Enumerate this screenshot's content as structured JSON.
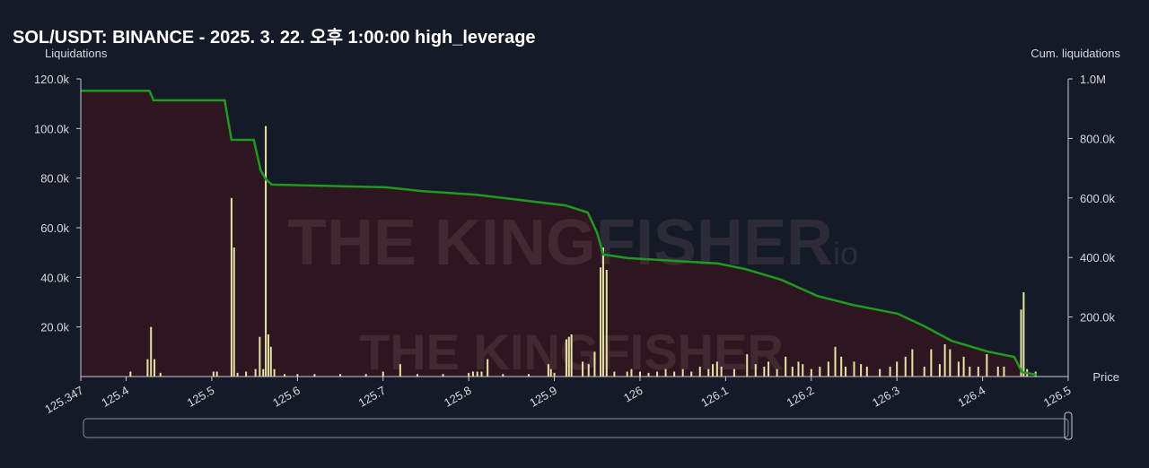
{
  "chart_data": {
    "type": "bar_line",
    "title": "SOL/USDT: BINANCE - 2025. 3. 22. 오후 1:00:00 high_leverage",
    "ylabel": "Liquidations",
    "y2label": "Cum. liquidations",
    "xlabel": "Price",
    "watermark": "THE KINGFISHER",
    "watermark_suffix": ".io",
    "xlim": [
      125.347,
      126.5
    ],
    "xticks": [
      125.347,
      125.4,
      125.5,
      125.6,
      125.7,
      125.8,
      125.9,
      126,
      126.1,
      126.2,
      126.3,
      126.4,
      126.5
    ],
    "ylim": [
      0,
      120000
    ],
    "yticks": [
      {
        "value": 20000,
        "label": "20.0k"
      },
      {
        "value": 40000,
        "label": "40.0k"
      },
      {
        "value": 60000,
        "label": "60.0k"
      },
      {
        "value": 80000,
        "label": "80.0k"
      },
      {
        "value": 100000,
        "label": "100.0k"
      },
      {
        "value": 120000,
        "label": "120.0k"
      }
    ],
    "y2lim": [
      0,
      1000000
    ],
    "y2ticks": [
      {
        "value": 200000,
        "label": "200.0k"
      },
      {
        "value": 400000,
        "label": "400.0k"
      },
      {
        "value": 600000,
        "label": "600.0k"
      },
      {
        "value": 800000,
        "label": "800.0k"
      },
      {
        "value": 1000000,
        "label": "1.0M"
      }
    ],
    "series": [
      {
        "type": "bar",
        "color": "#e6e4a4",
        "x": [
          125.405,
          125.425,
          125.429,
          125.433,
          125.44,
          125.502,
          125.506,
          125.523,
          125.526,
          125.53,
          125.54,
          125.551,
          125.556,
          125.56,
          125.563,
          125.566,
          125.569,
          125.573,
          125.585,
          125.6,
          125.62,
          125.65,
          125.68,
          125.7,
          125.72,
          125.74,
          125.77,
          125.8,
          125.805,
          125.81,
          125.815,
          125.822,
          125.84,
          125.87,
          125.893,
          125.896,
          125.9,
          125.914,
          125.917,
          125.92,
          125.933,
          125.94,
          125.947,
          125.954,
          125.957,
          125.961,
          125.97,
          125.985,
          125.99,
          126,
          126.01,
          126.02,
          126.03,
          126.04,
          126.05,
          126.06,
          126.07,
          126.08,
          126.085,
          126.09,
          126.095,
          126.11,
          126.125,
          126.135,
          126.145,
          126.15,
          126.16,
          126.17,
          126.178,
          126.185,
          126.19,
          126.2,
          126.21,
          126.22,
          126.228,
          126.235,
          126.24,
          126.25,
          126.258,
          126.265,
          126.28,
          126.292,
          126.3,
          126.31,
          126.318,
          126.332,
          126.34,
          126.35,
          126.356,
          126.362,
          126.372,
          126.378,
          126.385,
          126.395,
          126.405,
          126.418,
          126.425,
          126.445,
          126.448,
          126.452,
          126.462
        ],
        "values": [
          2000,
          7000,
          20000,
          7000,
          1500,
          2000,
          2000,
          72000,
          52000,
          1500,
          2000,
          3000,
          16000,
          3000,
          101000,
          17000,
          12000,
          3000,
          1000,
          1000,
          1000,
          1000,
          1000,
          2000,
          5000,
          1000,
          1000,
          1500,
          2000,
          2000,
          2000,
          7000,
          1000,
          1000,
          5000,
          3000,
          1500,
          15000,
          16000,
          17000,
          6000,
          5000,
          10000,
          44000,
          52000,
          43000,
          2000,
          2000,
          3000,
          2000,
          1500,
          2000,
          3000,
          2000,
          3000,
          2000,
          4000,
          3000,
          5000,
          6000,
          4000,
          3000,
          9000,
          5000,
          4000,
          6000,
          3000,
          8000,
          4000,
          6000,
          5000,
          3000,
          4000,
          6000,
          12000,
          8000,
          4000,
          6000,
          5000,
          4000,
          3000,
          4000,
          6000,
          8000,
          11000,
          4000,
          11000,
          5000,
          13000,
          11000,
          6000,
          8000,
          4000,
          4000,
          9000,
          4000,
          4000,
          27000,
          34000,
          3000,
          2000
        ]
      },
      {
        "type": "line",
        "axis": "y2",
        "color": "#1f9a1f",
        "fill": "#2e1620",
        "x": [
          125.347,
          125.427,
          125.432,
          125.515,
          125.523,
          125.549,
          125.557,
          125.563,
          125.57,
          125.703,
          125.745,
          125.808,
          125.913,
          125.939,
          125.95,
          125.957,
          125.986,
          126.091,
          126.123,
          126.165,
          126.207,
          126.248,
          126.301,
          126.332,
          126.364,
          126.406,
          126.437,
          126.446,
          126.463
        ],
        "values": [
          960000,
          960000,
          928000,
          928000,
          795000,
          795000,
          693000,
          663000,
          645000,
          636000,
          623000,
          611000,
          575000,
          551000,
          482000,
          410000,
          398000,
          380000,
          361000,
          325000,
          271000,
          241000,
          211000,
          169000,
          120000,
          84000,
          66000,
          15000,
          6000
        ]
      }
    ]
  }
}
